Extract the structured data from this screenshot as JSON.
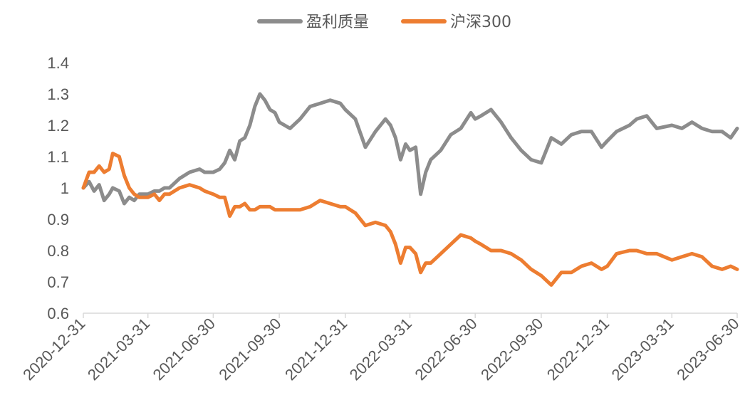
{
  "chart_data": {
    "type": "line",
    "title": "",
    "xlabel": "",
    "ylabel": "",
    "ylim": [
      0.6,
      1.4
    ],
    "yticks": [
      "1.4",
      "1.3",
      "1.2",
      "1.1",
      "1",
      "0.9",
      "0.8",
      "0.7",
      "0.6"
    ],
    "xticks": [
      "2020-12-31",
      "2021-03-31",
      "2021-06-30",
      "2021-09-30",
      "2021-12-31",
      "2022-03-31",
      "2022-06-30",
      "2022-09-30",
      "2022-12-31",
      "2023-03-31",
      "2023-06-30"
    ],
    "legend_position": "top-center",
    "grid": false,
    "series": [
      {
        "name": "盈利质量",
        "color": "#8C8C8C",
        "x": [
          "2020-12-31",
          "2021-01-08",
          "2021-01-15",
          "2021-01-22",
          "2021-01-29",
          "2021-02-05",
          "2021-02-10",
          "2021-02-19",
          "2021-02-26",
          "2021-03-05",
          "2021-03-12",
          "2021-03-19",
          "2021-03-31",
          "2021-04-09",
          "2021-04-16",
          "2021-04-23",
          "2021-04-30",
          "2021-05-14",
          "2021-05-28",
          "2021-06-11",
          "2021-06-18",
          "2021-06-30",
          "2021-07-09",
          "2021-07-16",
          "2021-07-23",
          "2021-07-30",
          "2021-08-06",
          "2021-08-13",
          "2021-08-20",
          "2021-08-27",
          "2021-09-03",
          "2021-09-10",
          "2021-09-17",
          "2021-09-24",
          "2021-09-30",
          "2021-10-15",
          "2021-10-29",
          "2021-11-12",
          "2021-11-26",
          "2021-12-10",
          "2021-12-24",
          "2021-12-31",
          "2022-01-14",
          "2022-01-28",
          "2022-02-11",
          "2022-02-25",
          "2022-03-04",
          "2022-03-11",
          "2022-03-18",
          "2022-03-25",
          "2022-03-31",
          "2022-04-08",
          "2022-04-15",
          "2022-04-22",
          "2022-04-29",
          "2022-05-13",
          "2022-05-27",
          "2022-06-10",
          "2022-06-24",
          "2022-06-30",
          "2022-07-08",
          "2022-07-22",
          "2022-08-05",
          "2022-08-19",
          "2022-09-02",
          "2022-09-16",
          "2022-09-30",
          "2022-10-14",
          "2022-10-28",
          "2022-11-11",
          "2022-11-25",
          "2022-12-09",
          "2022-12-23",
          "2022-12-31",
          "2023-01-13",
          "2023-01-31",
          "2023-02-10",
          "2023-02-24",
          "2023-03-10",
          "2023-03-31",
          "2023-04-14",
          "2023-04-28",
          "2023-05-12",
          "2023-05-26",
          "2023-06-09",
          "2023-06-21",
          "2023-06-30"
        ],
        "values": [
          1.0,
          1.02,
          0.99,
          1.01,
          0.96,
          0.98,
          1.0,
          0.99,
          0.95,
          0.97,
          0.96,
          0.98,
          0.98,
          0.99,
          0.99,
          1.0,
          1.0,
          1.03,
          1.05,
          1.06,
          1.05,
          1.05,
          1.06,
          1.08,
          1.12,
          1.09,
          1.15,
          1.16,
          1.2,
          1.26,
          1.3,
          1.28,
          1.25,
          1.24,
          1.21,
          1.19,
          1.22,
          1.26,
          1.27,
          1.28,
          1.27,
          1.25,
          1.22,
          1.13,
          1.18,
          1.22,
          1.2,
          1.16,
          1.09,
          1.14,
          1.12,
          1.13,
          0.98,
          1.05,
          1.09,
          1.12,
          1.17,
          1.19,
          1.24,
          1.22,
          1.23,
          1.25,
          1.21,
          1.16,
          1.12,
          1.09,
          1.08,
          1.16,
          1.14,
          1.17,
          1.18,
          1.18,
          1.13,
          1.15,
          1.18,
          1.2,
          1.22,
          1.23,
          1.19,
          1.2,
          1.19,
          1.21,
          1.19,
          1.18,
          1.18,
          1.16,
          1.19
        ]
      },
      {
        "name": "沪深300",
        "color": "#ED7D31",
        "x": [
          "2020-12-31",
          "2021-01-08",
          "2021-01-15",
          "2021-01-22",
          "2021-01-29",
          "2021-02-05",
          "2021-02-10",
          "2021-02-19",
          "2021-02-26",
          "2021-03-05",
          "2021-03-12",
          "2021-03-19",
          "2021-03-31",
          "2021-04-09",
          "2021-04-16",
          "2021-04-23",
          "2021-04-30",
          "2021-05-14",
          "2021-05-28",
          "2021-06-11",
          "2021-06-18",
          "2021-06-30",
          "2021-07-09",
          "2021-07-16",
          "2021-07-23",
          "2021-07-30",
          "2021-08-06",
          "2021-08-13",
          "2021-08-20",
          "2021-08-27",
          "2021-09-03",
          "2021-09-10",
          "2021-09-17",
          "2021-09-24",
          "2021-09-30",
          "2021-10-15",
          "2021-10-29",
          "2021-11-12",
          "2021-11-26",
          "2021-12-10",
          "2021-12-24",
          "2021-12-31",
          "2022-01-14",
          "2022-01-28",
          "2022-02-11",
          "2022-02-25",
          "2022-03-04",
          "2022-03-11",
          "2022-03-18",
          "2022-03-25",
          "2022-03-31",
          "2022-04-08",
          "2022-04-15",
          "2022-04-22",
          "2022-04-29",
          "2022-05-13",
          "2022-05-27",
          "2022-06-10",
          "2022-06-24",
          "2022-06-30",
          "2022-07-08",
          "2022-07-22",
          "2022-08-05",
          "2022-08-19",
          "2022-09-02",
          "2022-09-16",
          "2022-09-30",
          "2022-10-14",
          "2022-10-28",
          "2022-11-11",
          "2022-11-25",
          "2022-12-09",
          "2022-12-23",
          "2022-12-31",
          "2023-01-13",
          "2023-01-31",
          "2023-02-10",
          "2023-02-24",
          "2023-03-10",
          "2023-03-31",
          "2023-04-14",
          "2023-04-28",
          "2023-05-12",
          "2023-05-26",
          "2023-06-09",
          "2023-06-21",
          "2023-06-30"
        ],
        "values": [
          1.0,
          1.05,
          1.05,
          1.07,
          1.05,
          1.06,
          1.11,
          1.1,
          1.04,
          1.0,
          0.98,
          0.97,
          0.97,
          0.98,
          0.96,
          0.98,
          0.98,
          1.0,
          1.01,
          1.0,
          0.99,
          0.98,
          0.97,
          0.97,
          0.91,
          0.94,
          0.94,
          0.95,
          0.93,
          0.93,
          0.94,
          0.94,
          0.94,
          0.93,
          0.93,
          0.93,
          0.93,
          0.94,
          0.96,
          0.95,
          0.94,
          0.94,
          0.92,
          0.88,
          0.89,
          0.88,
          0.86,
          0.82,
          0.76,
          0.81,
          0.81,
          0.79,
          0.73,
          0.76,
          0.76,
          0.79,
          0.82,
          0.85,
          0.84,
          0.83,
          0.82,
          0.8,
          0.8,
          0.79,
          0.77,
          0.74,
          0.72,
          0.69,
          0.73,
          0.73,
          0.75,
          0.76,
          0.74,
          0.75,
          0.79,
          0.8,
          0.8,
          0.79,
          0.79,
          0.77,
          0.78,
          0.79,
          0.78,
          0.75,
          0.74,
          0.75,
          0.74
        ]
      }
    ]
  }
}
